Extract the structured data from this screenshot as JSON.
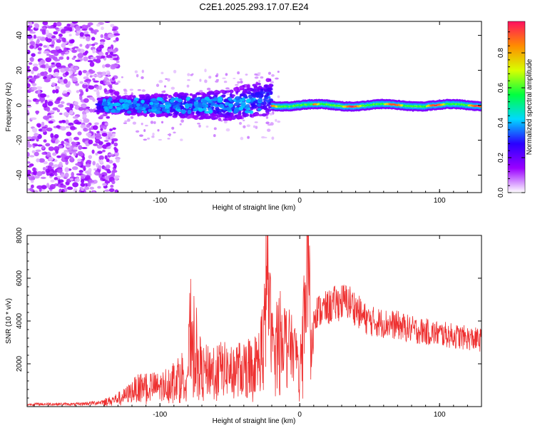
{
  "title": "C2E1.2025.293.17.07.E24",
  "chart_data": [
    {
      "type": "heatmap",
      "xlabel": "Height of straight line (km)",
      "ylabel": "Frequency (Hz)",
      "xlim": [
        -195,
        130
      ],
      "ylim": [
        -50,
        48
      ],
      "xticks": [
        -100,
        0,
        100
      ],
      "xtick_labels": [
        "-100",
        "0",
        "100"
      ],
      "yticks": [
        -40,
        -20,
        0,
        20,
        40
      ],
      "ytick_labels": [
        "-40",
        "-20",
        "0",
        "20",
        "40"
      ],
      "colorbar": {
        "label": "Normalized spectral amplitude",
        "range": [
          0.0,
          0.98
        ],
        "ticks": [
          0.0,
          0.2,
          0.4,
          0.6,
          0.8
        ],
        "tick_labels": [
          "0.0",
          "0.2",
          "0.4",
          "0.6",
          "0.8"
        ],
        "colors": [
          "#ffffff",
          "#9a00ff",
          "#2a00ff",
          "#00d8ff",
          "#00ff40",
          "#d8ff00",
          "#ff8c00",
          "#ff1060"
        ]
      },
      "features": {
        "noise_region_km": [
          -195,
          -130
        ],
        "broadband_band_km": [
          -145,
          -20
        ],
        "narrow_band_km": [
          -20,
          130
        ],
        "band_center_hz": 0
      }
    },
    {
      "type": "line",
      "xlabel": "Height of straight line (km)",
      "ylabel": "SNR (10 * v/v)",
      "xlim": [
        -195,
        130
      ],
      "ylim": [
        0,
        8000
      ],
      "xticks": [
        -100,
        0,
        100
      ],
      "xtick_labels": [
        "-100",
        "0",
        "100"
      ],
      "yticks": [
        2000,
        4000,
        6000,
        8000
      ],
      "ytick_labels": [
        "2000",
        "4000",
        "6000",
        "8000"
      ],
      "color": "#ee3030",
      "x": [
        -195,
        -180,
        -160,
        -145,
        -135,
        -125,
        -118,
        -110,
        -100,
        -90,
        -80,
        -78,
        -70,
        -60,
        -50,
        -40,
        -30,
        -25,
        -24,
        -20,
        -15,
        -10,
        -5,
        0,
        3,
        6,
        8,
        10,
        15,
        20,
        25,
        30,
        35,
        40,
        45,
        50,
        60,
        70,
        80,
        90,
        100,
        110,
        120,
        130
      ],
      "values": [
        100,
        120,
        110,
        180,
        280,
        500,
        800,
        1000,
        900,
        1300,
        1700,
        3800,
        1600,
        1800,
        1700,
        1800,
        2000,
        3500,
        7400,
        3000,
        3600,
        3200,
        2700,
        2300,
        4400,
        8000,
        2300,
        4400,
        4500,
        4600,
        4800,
        4900,
        4900,
        4600,
        4200,
        4000,
        3900,
        3800,
        3600,
        3500,
        3400,
        3300,
        3200,
        3100
      ]
    }
  ]
}
